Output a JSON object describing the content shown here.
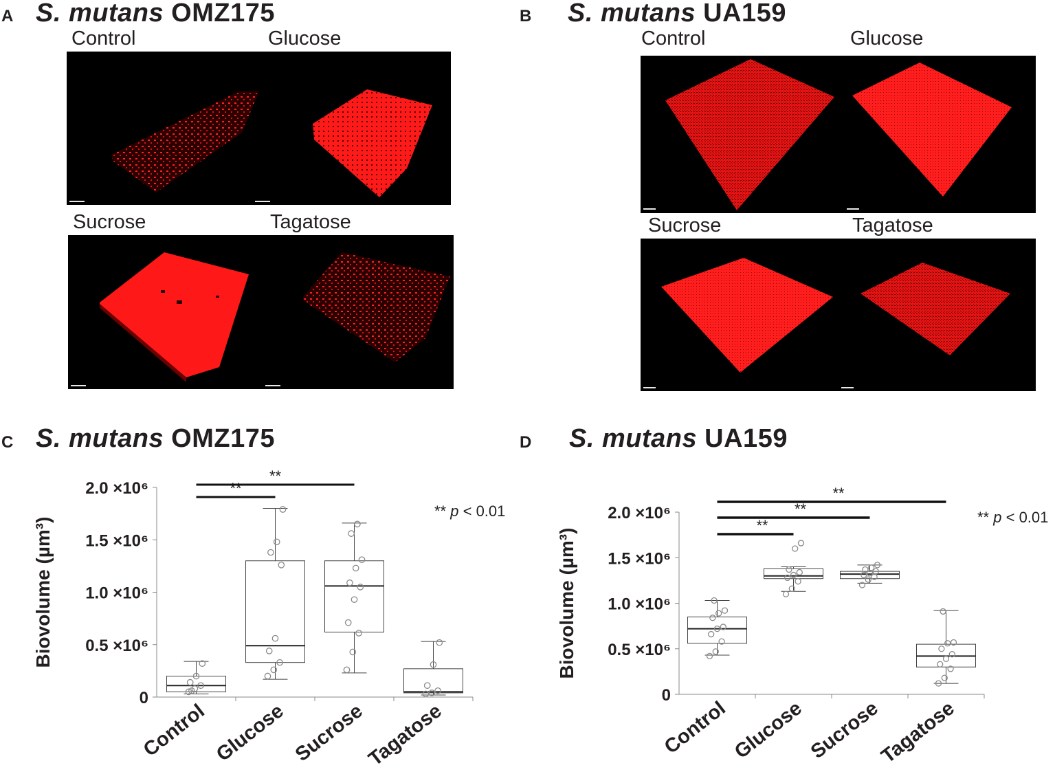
{
  "panels": {
    "A": {
      "letter": "A",
      "title_italic": "S. mutans",
      "title_strain": "OMZ175",
      "conditions": [
        "Control",
        "Glucose",
        "Sucrose",
        "Tagatose"
      ]
    },
    "B": {
      "letter": "B",
      "title_italic": "S. mutans",
      "title_strain": "UA159",
      "conditions": [
        "Control",
        "Glucose",
        "Sucrose",
        "Tagatose"
      ]
    },
    "C": {
      "letter": "C",
      "title_italic": "S. mutans",
      "title_strain": "OMZ175"
    },
    "D": {
      "letter": "D",
      "title_italic": "S. mutans",
      "title_strain": "UA159"
    }
  },
  "colors": {
    "biofilm": "#ff1a1a",
    "background": "#000000",
    "text": "#231f20"
  },
  "chart_data": [
    {
      "type": "box",
      "panel": "C",
      "ylabel": "Biovolume (µm³)",
      "ylim": [
        0,
        2000000
      ],
      "yticks": [
        {
          "value": 0,
          "label": "0"
        },
        {
          "value": 500000,
          "label": "0.5 ×10⁶"
        },
        {
          "value": 1000000,
          "label": "1.0 ×10⁶"
        },
        {
          "value": 1500000,
          "label": "1.5 ×10⁶"
        },
        {
          "value": 2000000,
          "label": "2.0 ×10⁶"
        }
      ],
      "categories": [
        "Control",
        "Glucose",
        "Sucrose",
        "Tagatose"
      ],
      "boxes": [
        {
          "whisker_low": 30000,
          "q1": 50000,
          "median": 110000,
          "q3": 200000,
          "whisker_high": 340000
        },
        {
          "whisker_low": 170000,
          "q1": 330000,
          "median": 490000,
          "q3": 1300000,
          "whisker_high": 1800000
        },
        {
          "whisker_low": 230000,
          "q1": 620000,
          "median": 1060000,
          "q3": 1300000,
          "whisker_high": 1660000
        },
        {
          "whisker_low": 20000,
          "q1": 40000,
          "median": 50000,
          "q3": 270000,
          "whisker_high": 530000
        }
      ],
      "points": [
        [
          50000,
          80000,
          110000,
          140000,
          200000,
          320000,
          60000
        ],
        [
          200000,
          260000,
          330000,
          440000,
          560000,
          1260000,
          1380000,
          1480000,
          1790000
        ],
        [
          260000,
          430000,
          610000,
          710000,
          930000,
          1050000,
          1090000,
          1230000,
          1310000,
          1560000,
          1650000
        ],
        [
          30000,
          40000,
          60000,
          110000,
          310000,
          520000
        ]
      ],
      "significance": [
        {
          "from": "Control",
          "to": "Glucose",
          "label": "**"
        },
        {
          "from": "Control",
          "to": "Sucrose",
          "label": "**"
        }
      ],
      "annotation": {
        "stars": "**",
        "p": "p",
        "rest": " < 0.01"
      }
    },
    {
      "type": "box",
      "panel": "D",
      "ylabel": "Biovolume (µm³)",
      "ylim": [
        0,
        2000000
      ],
      "yticks": [
        {
          "value": 0,
          "label": "0"
        },
        {
          "value": 500000,
          "label": "0.5 ×10⁶"
        },
        {
          "value": 1000000,
          "label": "1.0 ×10⁶"
        },
        {
          "value": 1500000,
          "label": "1.5 ×10⁶"
        },
        {
          "value": 2000000,
          "label": "2.0 ×10⁶"
        }
      ],
      "categories": [
        "Control",
        "Glucose",
        "Sucrose",
        "Tagatose"
      ],
      "boxes": [
        {
          "whisker_low": 430000,
          "q1": 560000,
          "median": 720000,
          "q3": 850000,
          "whisker_high": 1030000
        },
        {
          "whisker_low": 1130000,
          "q1": 1270000,
          "median": 1300000,
          "q3": 1380000,
          "whisker_high": 1400000
        },
        {
          "whisker_low": 1220000,
          "q1": 1270000,
          "median": 1320000,
          "q3": 1350000,
          "whisker_high": 1420000
        },
        {
          "whisker_low": 120000,
          "q1": 300000,
          "median": 420000,
          "q3": 550000,
          "whisker_high": 920000
        }
      ],
      "points": [
        [
          420000,
          470000,
          580000,
          660000,
          720000,
          740000,
          840000,
          890000,
          920000,
          1030000
        ],
        [
          1100000,
          1160000,
          1240000,
          1280000,
          1310000,
          1340000,
          1370000,
          1600000,
          1660000
        ],
        [
          1200000,
          1260000,
          1290000,
          1310000,
          1330000,
          1350000,
          1370000,
          1390000,
          1420000
        ],
        [
          120000,
          180000,
          280000,
          330000,
          390000,
          440000,
          500000,
          560000,
          570000,
          910000
        ]
      ],
      "significance": [
        {
          "from": "Control",
          "to": "Glucose",
          "label": "**"
        },
        {
          "from": "Control",
          "to": "Sucrose",
          "label": "**"
        },
        {
          "from": "Control",
          "to": "Tagatose",
          "label": "**"
        }
      ],
      "annotation": {
        "stars": "**",
        "p": "p",
        "rest": " < 0.01"
      }
    }
  ]
}
